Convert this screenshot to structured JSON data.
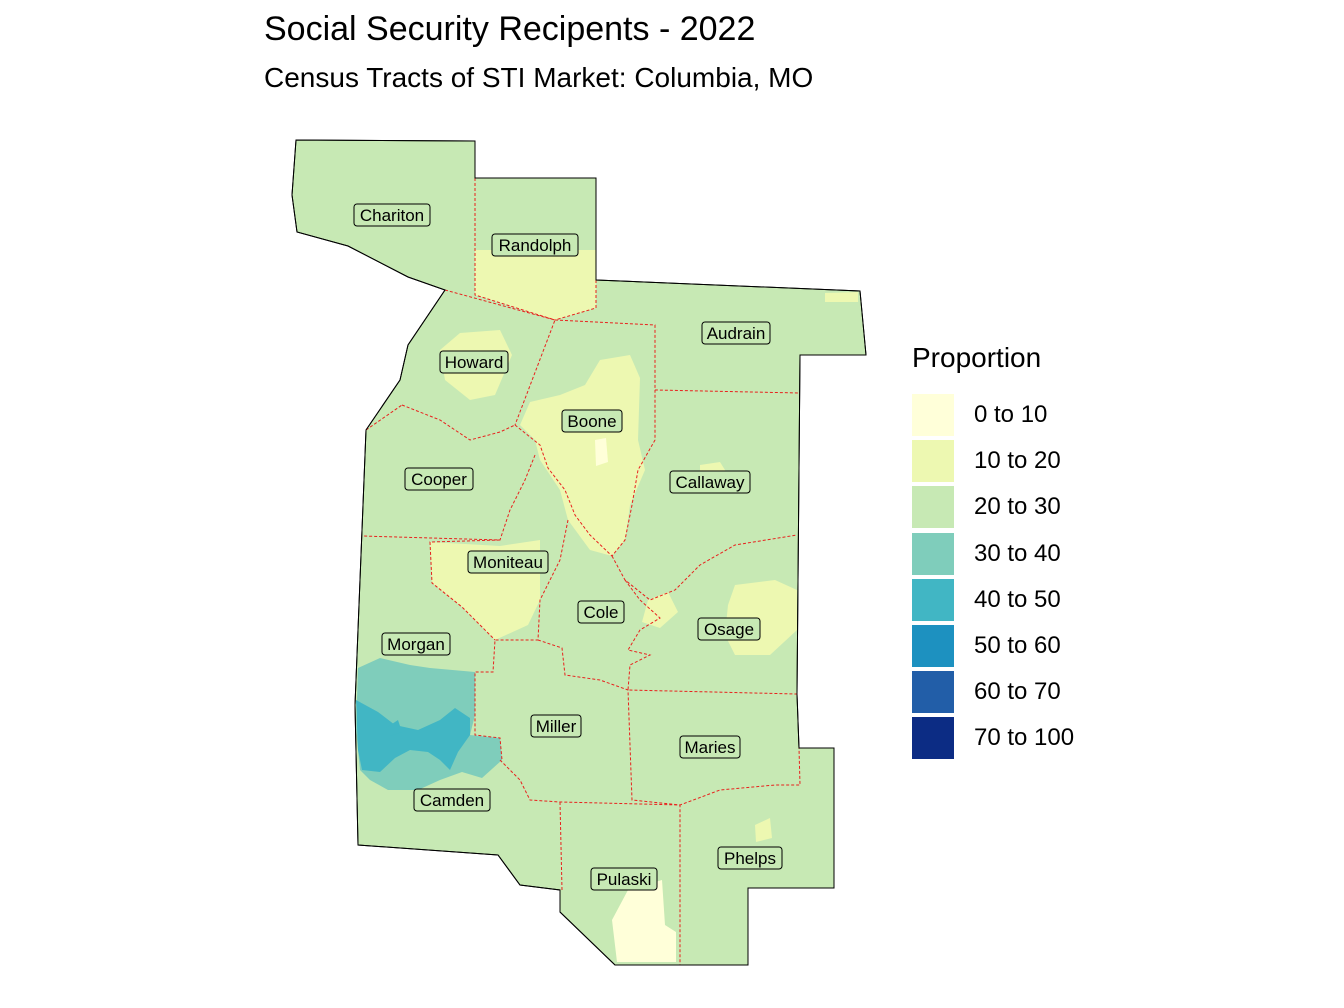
{
  "title": "Social Security Recipents - 2022",
  "subtitle": "Census Tracts of STI Market: Columbia, MO",
  "legend": {
    "title": "Proportion",
    "items": [
      {
        "label": "0 to 10",
        "color": "#ffffd9"
      },
      {
        "label": "10 to 20",
        "color": "#edf8b1"
      },
      {
        "label": "20 to 30",
        "color": "#c7e9b4"
      },
      {
        "label": "30 to 40",
        "color": "#7fcdbb"
      },
      {
        "label": "40 to 50",
        "color": "#41b6c4"
      },
      {
        "label": "50 to 60",
        "color": "#1d91c0"
      },
      {
        "label": "60 to 70",
        "color": "#225ea8"
      },
      {
        "label": "70 to 100",
        "color": "#0c2c84"
      }
    ]
  },
  "counties": [
    {
      "id": "chariton",
      "name": "Chariton"
    },
    {
      "id": "randolph",
      "name": "Randolph"
    },
    {
      "id": "audrain",
      "name": "Audrain"
    },
    {
      "id": "howard",
      "name": "Howard"
    },
    {
      "id": "boone",
      "name": "Boone"
    },
    {
      "id": "cooper",
      "name": "Cooper"
    },
    {
      "id": "callaway",
      "name": "Callaway"
    },
    {
      "id": "moniteau",
      "name": "Moniteau"
    },
    {
      "id": "cole",
      "name": "Cole"
    },
    {
      "id": "osage",
      "name": "Osage"
    },
    {
      "id": "morgan",
      "name": "Morgan"
    },
    {
      "id": "miller",
      "name": "Miller"
    },
    {
      "id": "maries",
      "name": "Maries"
    },
    {
      "id": "camden",
      "name": "Camden"
    },
    {
      "id": "phelps",
      "name": "Phelps"
    },
    {
      "id": "pulaski",
      "name": "Pulaski"
    }
  ],
  "colors": {
    "county_border": "#e8211d",
    "outline": "#000000"
  }
}
